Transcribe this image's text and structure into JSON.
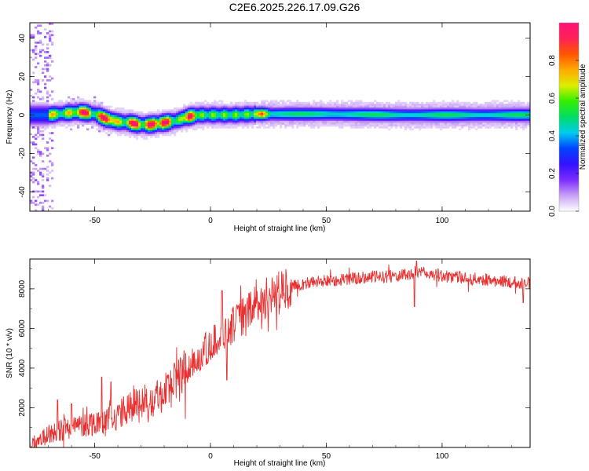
{
  "title": "C2E6.2025.226.17.09.G26",
  "chart_data": [
    {
      "type": "heatmap",
      "xlabel": "Height of straight line (km)",
      "ylabel": "Frequency (Hz)",
      "xlim": [
        -78,
        138
      ],
      "ylim": [
        -50,
        48
      ],
      "xticks": [
        -50,
        0,
        50,
        100
      ],
      "yticks": [
        -40,
        -20,
        0,
        20,
        40
      ],
      "colorbar": {
        "label": "Normalized spectral amplitude",
        "range": [
          0,
          1
        ],
        "ticks": [
          0.0,
          0.2,
          0.4,
          0.6,
          0.8
        ],
        "colors": [
          "#ffffff",
          "#c8a0f5",
          "#7b2cff",
          "#3311ff",
          "#0044ff",
          "#00ccee",
          "#00dd66",
          "#33ee00",
          "#ddee00",
          "#ffaa00",
          "#ff5500",
          "#ff2255",
          "#ff1177"
        ]
      },
      "ridge": {
        "x": [
          -78,
          -70,
          -62,
          -56,
          -50,
          -45,
          -40,
          -35,
          -31,
          -26,
          -20,
          -15,
          -10,
          -5,
          0,
          10,
          20,
          30,
          50,
          80,
          110,
          138
        ],
        "center": [
          0,
          0,
          1,
          1.5,
          0.5,
          -2,
          -3.5,
          -4,
          -5,
          -5,
          -4,
          -3,
          -1,
          0,
          0,
          0,
          0.5,
          0.5,
          0.5,
          0,
          0,
          0
        ]
      },
      "highlights_x": [
        -55,
        -45,
        -33,
        -25,
        -20,
        -9,
        22
      ]
    },
    {
      "type": "line",
      "xlabel": "Height of straight line (km)",
      "ylabel": "SNR (10 * v/v)",
      "xlim": [
        -78,
        138
      ],
      "ylim": [
        0,
        9500
      ],
      "xticks": [
        -50,
        0,
        50,
        100
      ],
      "yticks": [
        2000,
        4000,
        6000,
        8000
      ],
      "color": "#e83030",
      "series": [
        {
          "x": [
            -78,
            -75,
            -70,
            -65,
            -60,
            -55,
            -50,
            -45,
            -40,
            -35,
            -30,
            -25,
            -20,
            -15,
            -10,
            -5,
            0,
            5,
            10,
            15,
            20,
            25,
            30,
            35,
            40,
            45,
            50,
            55,
            60,
            65,
            70,
            75,
            80,
            85,
            90,
            95,
            100,
            105,
            110,
            115,
            120,
            125,
            130,
            135,
            138
          ],
          "y": [
            100,
            300,
            600,
            900,
            1000,
            1150,
            1250,
            1400,
            1600,
            2000,
            2300,
            2500,
            2800,
            3300,
            3900,
            4600,
            5200,
            5700,
            6200,
            6700,
            7200,
            7600,
            7900,
            8100,
            8250,
            8350,
            8400,
            8450,
            8500,
            8550,
            8600,
            8600,
            8650,
            8700,
            8800,
            8750,
            8650,
            8600,
            8550,
            8500,
            8450,
            8400,
            8350,
            8300,
            8300
          ]
        }
      ],
      "spikes": [
        {
          "x": -66,
          "y": 2400
        },
        {
          "x": -60,
          "y": 2200
        },
        {
          "x": -47,
          "y": 3550
        },
        {
          "x": -43,
          "y": 3300
        },
        {
          "x": 5,
          "y": 7900
        },
        {
          "x": 7,
          "y": 3400
        },
        {
          "x": 89,
          "y": 9400
        },
        {
          "x": 88,
          "y": 7100
        },
        {
          "x": 135,
          "y": 7300
        }
      ]
    }
  ]
}
